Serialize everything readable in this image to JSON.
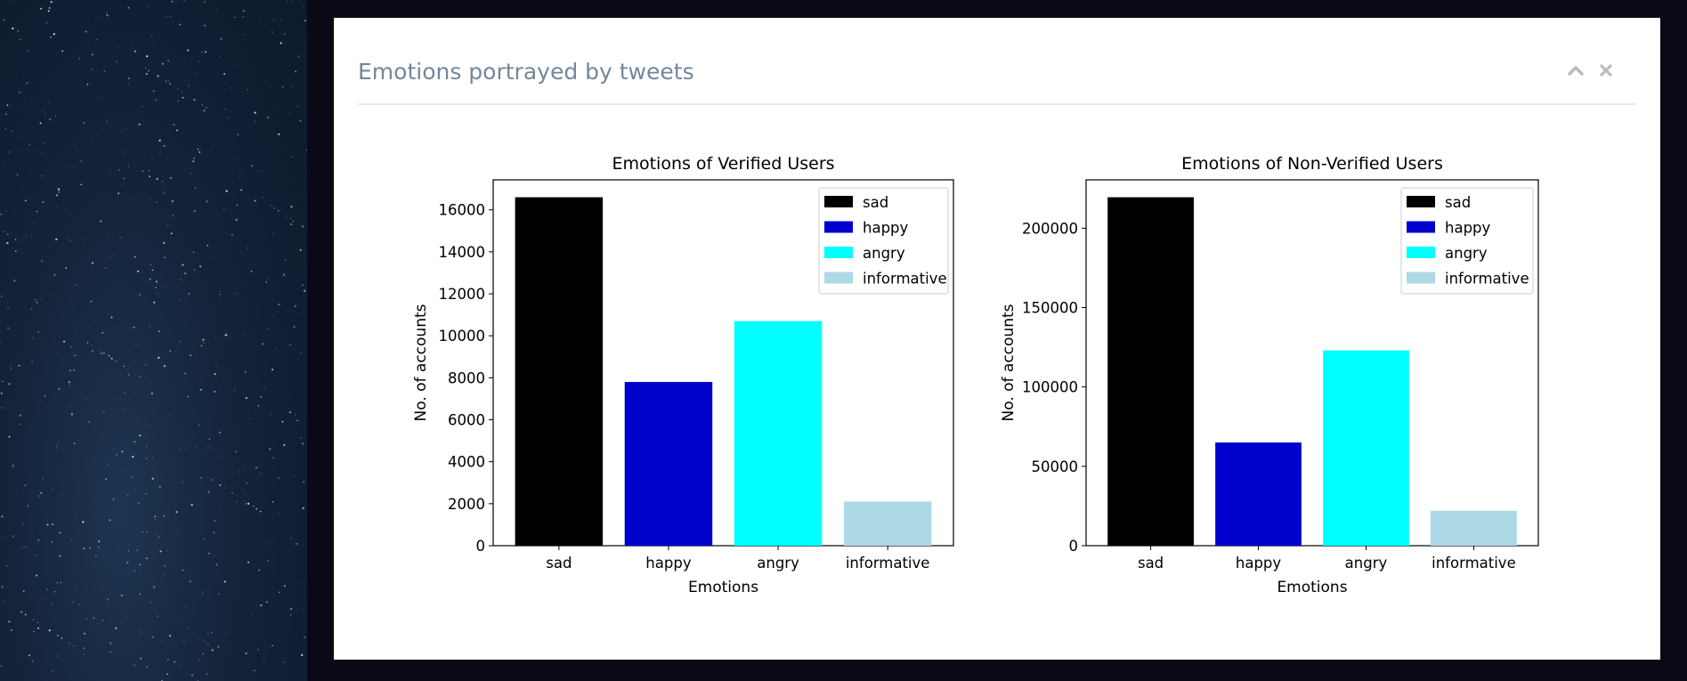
{
  "panel": {
    "title": "Emotions portrayed by tweets",
    "icons": [
      "chevron-up-icon",
      "close-icon"
    ]
  },
  "chart_data": [
    {
      "type": "bar",
      "title": "Emotions of Verified Users",
      "xlabel": "Emotions",
      "ylabel": "No. of accounts",
      "categories": [
        "sad",
        "happy",
        "angry",
        "informative"
      ],
      "values": [
        16600,
        7800,
        10700,
        2100
      ],
      "colors": [
        "#000000",
        "#0000cd",
        "#00ffff",
        "#add8e6"
      ],
      "ylim": [
        0,
        17430
      ],
      "yticks": [
        0,
        2000,
        4000,
        6000,
        8000,
        10000,
        12000,
        14000,
        16000
      ],
      "legend": {
        "position": "upper right",
        "entries": [
          "sad",
          "happy",
          "angry",
          "informative"
        ]
      },
      "grid": false
    },
    {
      "type": "bar",
      "title": "Emotions of Non-Verified Users",
      "xlabel": "Emotions",
      "ylabel": "No. of accounts",
      "categories": [
        "sad",
        "happy",
        "angry",
        "informative"
      ],
      "values": [
        219500,
        65000,
        123000,
        22000
      ],
      "colors": [
        "#000000",
        "#0000cd",
        "#00ffff",
        "#add8e6"
      ],
      "ylim": [
        0,
        230475
      ],
      "yticks": [
        0,
        50000,
        100000,
        150000,
        200000
      ],
      "legend": {
        "position": "upper right",
        "entries": [
          "sad",
          "happy",
          "angry",
          "informative"
        ]
      },
      "grid": false
    }
  ]
}
